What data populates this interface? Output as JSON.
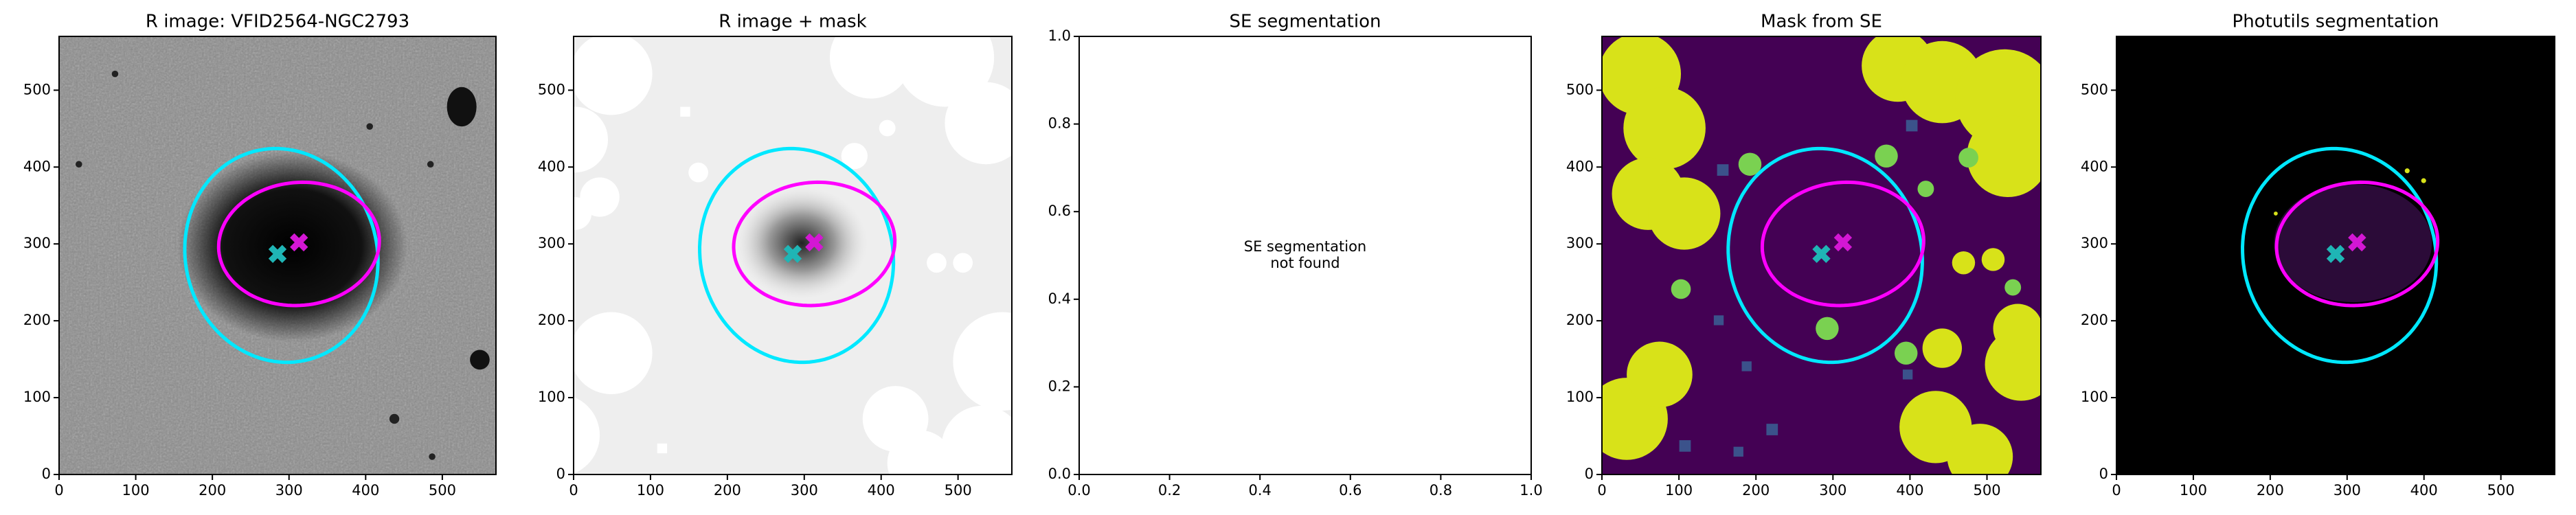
{
  "chart_data": [
    {
      "type": "image",
      "title": "R image: VFID2564-NGC2793",
      "xlim": [
        0,
        570
      ],
      "ylim": [
        0,
        570
      ],
      "xticks": [
        0,
        100,
        200,
        300,
        400,
        500
      ],
      "yticks": [
        0,
        100,
        200,
        300,
        400,
        500
      ],
      "markers": [
        {
          "x": 285,
          "y": 287,
          "color": "#1fb5b5"
        },
        {
          "x": 313,
          "y": 302,
          "color": "#d417d4"
        }
      ],
      "ellipses": [
        {
          "cx": 290,
          "cy": 285,
          "rx": 125,
          "ry": 140,
          "angle": 15,
          "color": "#00e8ff"
        },
        {
          "cx": 313,
          "cy": 300,
          "rx": 105,
          "ry": 80,
          "angle": 5,
          "color": "#ff00ff"
        }
      ]
    },
    {
      "type": "image",
      "title": "R image + mask",
      "xlim": [
        0,
        570
      ],
      "ylim": [
        0,
        570
      ],
      "xticks": [
        0,
        100,
        200,
        300,
        400,
        500
      ],
      "yticks": [
        0,
        100,
        200,
        300,
        400,
        500
      ],
      "markers": [
        {
          "x": 285,
          "y": 287,
          "color": "#1fb5b5"
        },
        {
          "x": 313,
          "y": 302,
          "color": "#d417d4"
        }
      ],
      "ellipses": [
        {
          "cx": 290,
          "cy": 285,
          "rx": 125,
          "ry": 140,
          "angle": 15,
          "color": "#00e8ff"
        },
        {
          "cx": 313,
          "cy": 300,
          "rx": 105,
          "ry": 80,
          "angle": 5,
          "color": "#ff00ff"
        }
      ]
    },
    {
      "type": "empty",
      "title": "SE segmentation",
      "xlim": [
        0,
        1
      ],
      "ylim": [
        0,
        1
      ],
      "xticks": [
        {
          "value": 0,
          "label": "0.0"
        },
        {
          "value": 0.2,
          "label": "0.2"
        },
        {
          "value": 0.4,
          "label": "0.4"
        },
        {
          "value": 0.6,
          "label": "0.6"
        },
        {
          "value": 0.8,
          "label": "0.8"
        },
        {
          "value": 1,
          "label": "1.0"
        }
      ],
      "yticks": [
        {
          "value": 0,
          "label": "0.0"
        },
        {
          "value": 0.2,
          "label": "0.2"
        },
        {
          "value": 0.4,
          "label": "0.4"
        },
        {
          "value": 0.6,
          "label": "0.6"
        },
        {
          "value": 0.8,
          "label": "0.8"
        },
        {
          "value": 1,
          "label": "1.0"
        }
      ],
      "annotation": [
        "SE segmentation",
        "not found"
      ]
    },
    {
      "type": "image",
      "title": "Mask from SE",
      "xlim": [
        0,
        570
      ],
      "ylim": [
        0,
        570
      ],
      "xticks": [
        0,
        100,
        200,
        300,
        400,
        500
      ],
      "yticks": [
        0,
        100,
        200,
        300,
        400,
        500
      ],
      "markers": [
        {
          "x": 285,
          "y": 287,
          "color": "#1fb5b5"
        },
        {
          "x": 313,
          "y": 302,
          "color": "#d417d4"
        }
      ],
      "ellipses": [
        {
          "cx": 290,
          "cy": 285,
          "rx": 125,
          "ry": 140,
          "angle": 15,
          "color": "#00e8ff"
        },
        {
          "cx": 313,
          "cy": 300,
          "rx": 105,
          "ry": 80,
          "angle": 5,
          "color": "#ff00ff"
        }
      ]
    },
    {
      "type": "image",
      "title": "Photutils segmentation",
      "xlim": [
        0,
        570
      ],
      "ylim": [
        0,
        570
      ],
      "xticks": [
        0,
        100,
        200,
        300,
        400,
        500
      ],
      "yticks": [
        0,
        100,
        200,
        300,
        400,
        500
      ],
      "markers": [
        {
          "x": 285,
          "y": 287,
          "color": "#1fb5b5"
        },
        {
          "x": 313,
          "y": 302,
          "color": "#d417d4"
        }
      ],
      "ellipses": [
        {
          "cx": 290,
          "cy": 285,
          "rx": 125,
          "ry": 140,
          "angle": 15,
          "color": "#00e8ff"
        },
        {
          "cx": 313,
          "cy": 300,
          "rx": 105,
          "ry": 80,
          "angle": 5,
          "color": "#ff00ff"
        }
      ]
    }
  ]
}
